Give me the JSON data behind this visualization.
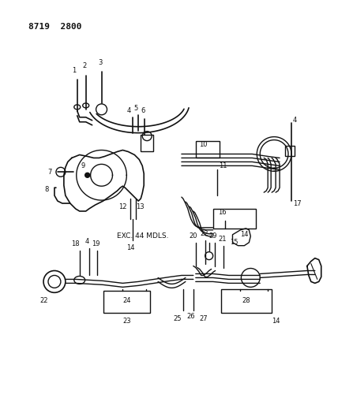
{
  "bg_color": "#ffffff",
  "line_color": "#111111",
  "text_color": "#111111",
  "header_text": "8719  2800",
  "header_fontsize": 8,
  "exc_label": "EXC. 44 MDLS.",
  "figsize": [
    4.28,
    5.33
  ],
  "dpi": 100
}
